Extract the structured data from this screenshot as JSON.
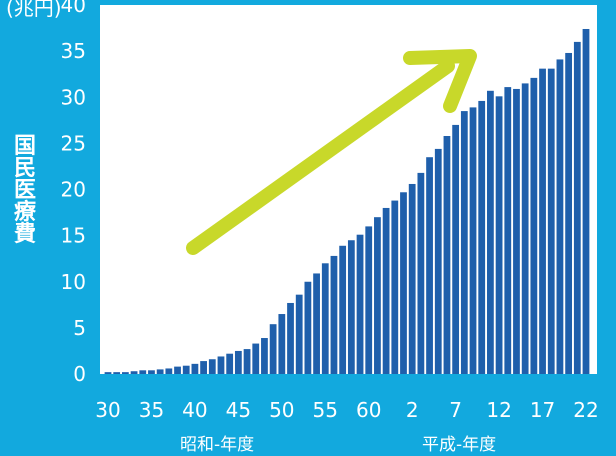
{
  "chart_data": {
    "type": "bar",
    "title": "",
    "ylabel": "国民医療費",
    "y_unit": "(兆円)",
    "ylim": [
      0,
      40
    ],
    "y_ticks": [
      0,
      5,
      10,
      15,
      20,
      25,
      30,
      35,
      40
    ],
    "x_tick_labels": [
      "30",
      "35",
      "40",
      "45",
      "50",
      "55",
      "60",
      "2",
      "7",
      "12",
      "17",
      "22"
    ],
    "era_labels": [
      "昭和-年度",
      "平成-年度"
    ],
    "categories": [
      "S30",
      "S31",
      "S32",
      "S33",
      "S34",
      "S35",
      "S36",
      "S37",
      "S38",
      "S39",
      "S40",
      "S41",
      "S42",
      "S43",
      "S44",
      "S45",
      "S46",
      "S47",
      "S48",
      "S49",
      "S50",
      "S51",
      "S52",
      "S53",
      "S54",
      "S55",
      "S56",
      "S57",
      "S58",
      "S59",
      "S60",
      "S61",
      "S62",
      "S63",
      "H1",
      "H2",
      "H3",
      "H4",
      "H5",
      "H6",
      "H7",
      "H8",
      "H9",
      "H10",
      "H11",
      "H12",
      "H13",
      "H14",
      "H15",
      "H16",
      "H17",
      "H18",
      "H19",
      "H20",
      "H21",
      "H22"
    ],
    "values": [
      0.2,
      0.2,
      0.2,
      0.3,
      0.4,
      0.4,
      0.5,
      0.6,
      0.8,
      0.9,
      1.1,
      1.4,
      1.6,
      1.9,
      2.2,
      2.5,
      2.7,
      3.3,
      3.9,
      5.4,
      6.5,
      7.7,
      8.6,
      10.0,
      10.9,
      12.0,
      12.8,
      13.9,
      14.5,
      15.1,
      16.0,
      17.0,
      18.0,
      18.8,
      19.7,
      20.6,
      21.8,
      23.5,
      24.4,
      25.8,
      27.0,
      28.5,
      28.9,
      29.6,
      30.7,
      30.1,
      31.1,
      30.9,
      31.5,
      32.1,
      33.1,
      33.1,
      34.1,
      34.8,
      36.0,
      37.4
    ],
    "bar_color": "#1f5fab",
    "plot_bg": "#ffffff",
    "page_bg": "#12a9de",
    "arrow_color": "#c8d82a"
  }
}
